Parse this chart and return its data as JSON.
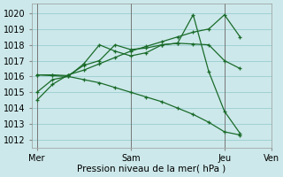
{
  "bg_color": "#cce8ea",
  "grid_color": "#99cdd0",
  "line_color": "#1a6b2a",
  "xlabel": "Pression niveau de la mer( hPa )",
  "ylim": [
    1011.5,
    1020.6
  ],
  "yticks": [
    1012,
    1013,
    1014,
    1015,
    1016,
    1017,
    1018,
    1019,
    1020
  ],
  "xlim": [
    -0.3,
    13.3
  ],
  "xtick_labels": [
    "Mer",
    "Sam",
    "Jeu",
    "Ven"
  ],
  "xtick_positions": [
    0,
    6,
    12,
    15
  ],
  "vline_positions": [
    0,
    6,
    12,
    15
  ],
  "series": [
    {
      "x": [
        0,
        1,
        2,
        3,
        4,
        5,
        6,
        7,
        8,
        9,
        10,
        11,
        12,
        13
      ],
      "y": [
        1014.5,
        1015.5,
        1016.1,
        1016.4,
        1016.8,
        1017.2,
        1017.6,
        1017.9,
        1018.2,
        1018.5,
        1018.8,
        1019.0,
        1019.9,
        1018.5
      ]
    },
    {
      "x": [
        0,
        1,
        2,
        3,
        4,
        5,
        6,
        7,
        8,
        9,
        10,
        11,
        12,
        13
      ],
      "y": [
        1016.1,
        1016.1,
        1016.05,
        1016.7,
        1017.0,
        1018.0,
        1017.7,
        1017.8,
        1018.0,
        1018.1,
        1018.05,
        1018.0,
        1017.0,
        1016.5
      ]
    },
    {
      "x": [
        0,
        1,
        2,
        3,
        4,
        5,
        6,
        7,
        8,
        9,
        10,
        11,
        12,
        13
      ],
      "y": [
        1016.1,
        1016.05,
        1016.0,
        1016.8,
        1018.0,
        1017.6,
        1017.3,
        1017.5,
        1018.0,
        1018.1,
        1019.9,
        1016.3,
        1013.8,
        1012.4
      ]
    },
    {
      "x": [
        0,
        1,
        2,
        3,
        4,
        5,
        6,
        7,
        8,
        9,
        10,
        11,
        12,
        13
      ],
      "y": [
        1015.0,
        1015.8,
        1016.0,
        1015.8,
        1015.6,
        1015.3,
        1015.0,
        1014.7,
        1014.4,
        1014.0,
        1013.6,
        1013.1,
        1012.5,
        1012.3
      ]
    }
  ]
}
